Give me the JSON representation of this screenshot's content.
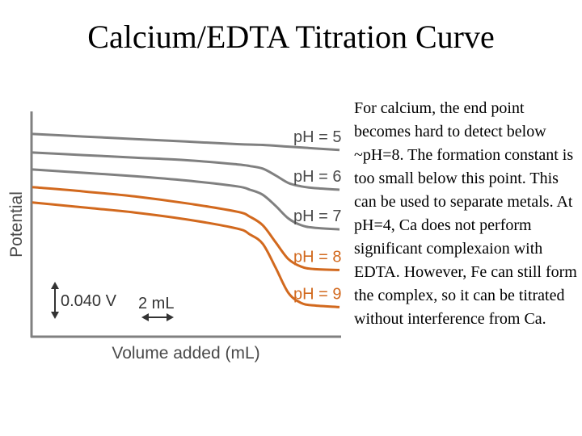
{
  "slide": {
    "title": "Calcium/EDTA Titration Curve",
    "description": "For calcium, the end point becomes hard to detect below ~pH=8. The formation constant is too small below this point. This can be used to separate metals. At pH=4, Ca does not perform significant complexaion with EDTA. However, Fe can still form the complex, so it can be titrated without interference from Ca."
  },
  "chart_data": {
    "type": "line",
    "title": "",
    "xlabel": "Volume added (mL)",
    "ylabel": "Potential",
    "grid": false,
    "legend": "labels placed at right end of each curve",
    "scale_bars": {
      "potential": "0.040 V",
      "volume": "2 mL"
    },
    "colors": {
      "gray": "#808080",
      "orange": "#d2691e"
    },
    "xlim": [
      0,
      24
    ],
    "ylim": [
      -0.24,
      0.02
    ],
    "series": [
      {
        "name": "pH = 5",
        "color": "gray",
        "x": [
          0,
          4,
          8,
          12,
          16,
          18,
          20,
          22,
          24
        ],
        "y": [
          0.0,
          -0.003,
          -0.006,
          -0.009,
          -0.012,
          -0.013,
          -0.015,
          -0.017,
          -0.019
        ]
      },
      {
        "name": "pH = 6",
        "color": "gray",
        "x": [
          0,
          4,
          8,
          12,
          16,
          17,
          18,
          19,
          20,
          21,
          22,
          24
        ],
        "y": [
          -0.022,
          -0.025,
          -0.028,
          -0.031,
          -0.036,
          -0.038,
          -0.041,
          -0.049,
          -0.058,
          -0.062,
          -0.064,
          -0.066
        ]
      },
      {
        "name": "pH = 7",
        "color": "gray",
        "x": [
          0,
          4,
          8,
          12,
          16,
          17,
          18,
          19,
          20,
          21,
          22,
          24
        ],
        "y": [
          -0.042,
          -0.046,
          -0.05,
          -0.055,
          -0.062,
          -0.066,
          -0.072,
          -0.085,
          -0.1,
          -0.108,
          -0.111,
          -0.113
        ]
      },
      {
        "name": "pH = 8",
        "color": "orange",
        "x": [
          0,
          4,
          8,
          12,
          16,
          17,
          18,
          19,
          20,
          21,
          22,
          24
        ],
        "y": [
          -0.063,
          -0.068,
          -0.074,
          -0.082,
          -0.092,
          -0.098,
          -0.108,
          -0.128,
          -0.148,
          -0.157,
          -0.16,
          -0.161
        ]
      },
      {
        "name": "pH = 9",
        "color": "orange",
        "x": [
          0,
          4,
          8,
          12,
          16,
          17,
          18,
          19,
          20,
          21,
          22,
          24
        ],
        "y": [
          -0.081,
          -0.087,
          -0.093,
          -0.101,
          -0.112,
          -0.119,
          -0.13,
          -0.158,
          -0.188,
          -0.2,
          -0.203,
          -0.205
        ]
      }
    ]
  }
}
